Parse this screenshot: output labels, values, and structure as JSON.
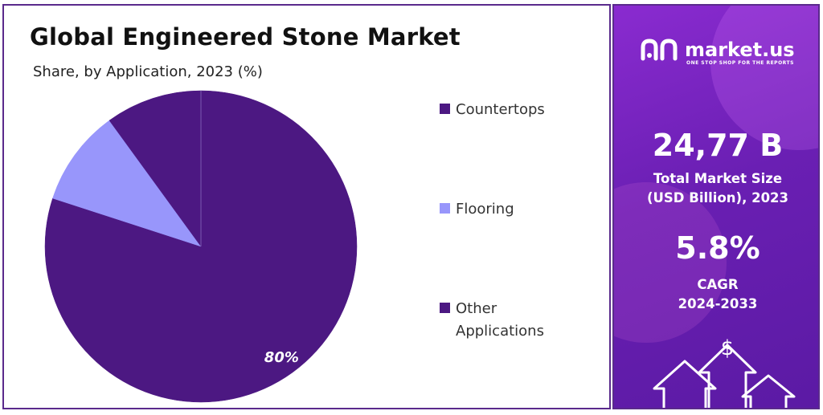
{
  "chart_data": {
    "type": "pie",
    "title": "Global Engineered Stone Market",
    "subtitle": "Share, by Application, 2023 (%)",
    "slices": [
      {
        "name": "Countertops",
        "value": 80,
        "color": "#4c1882",
        "label": "80%"
      },
      {
        "name": "Flooring",
        "value": 10,
        "color": "#9896fb"
      },
      {
        "name": "Other Applications",
        "value": 10,
        "color": "#4c1882"
      }
    ],
    "legend_position": "right"
  },
  "sidebar": {
    "brand": "market.us",
    "tagline": "ONE STOP SHOP FOR THE REPORTS",
    "market_size": "24,77 B",
    "market_size_label_1": "Total Market Size",
    "market_size_label_2": "(USD Billion), 2023",
    "cagr": "5.8%",
    "cagr_label_1": "CAGR",
    "cagr_label_2": "2024-2033",
    "currency_symbol": "$"
  }
}
